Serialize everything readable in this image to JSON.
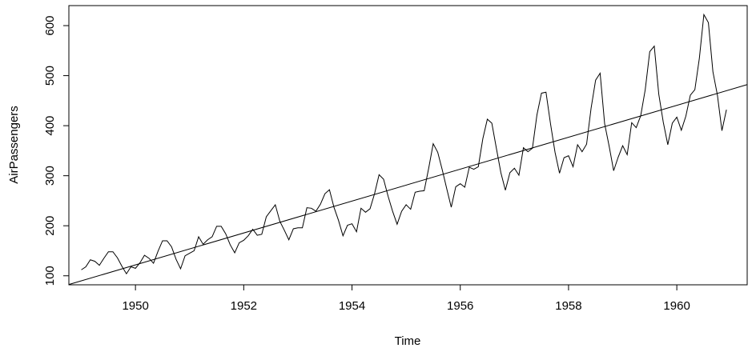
{
  "chart_data": {
    "type": "line",
    "title": "",
    "xlabel": "Time",
    "ylabel": "AirPassengers",
    "xlim": [
      1948.77,
      1961.3
    ],
    "ylim": [
      82,
      640
    ],
    "x_ticks": [
      1950,
      1952,
      1954,
      1956,
      1958,
      1960
    ],
    "y_ticks": [
      100,
      200,
      300,
      400,
      500,
      600
    ],
    "grid": false,
    "legend": "none",
    "line_color": "#000000",
    "series": [
      {
        "start": 1949,
        "frequency": 12,
        "values": [
          112,
          118,
          132,
          129,
          121,
          135,
          148,
          148,
          136,
          119,
          104,
          118,
          115,
          126,
          141,
          135,
          125,
          149,
          170,
          170,
          158,
          133,
          114,
          140,
          145,
          150,
          178,
          163,
          172,
          178,
          199,
          199,
          184,
          162,
          146,
          166,
          171,
          180,
          193,
          181,
          183,
          218,
          230,
          242,
          209,
          191,
          172,
          194,
          196,
          196,
          236,
          235,
          229,
          243,
          264,
          272,
          237,
          211,
          180,
          201,
          204,
          188,
          235,
          227,
          234,
          264,
          302,
          293,
          259,
          229,
          203,
          229,
          242,
          233,
          267,
          269,
          270,
          315,
          364,
          347,
          312,
          274,
          237,
          278,
          284,
          277,
          317,
          313,
          318,
          374,
          413,
          405,
          355,
          306,
          271,
          306,
          315,
          301,
          356,
          348,
          355,
          422,
          465,
          467,
          404,
          347,
          305,
          336,
          340,
          318,
          362,
          348,
          363,
          435,
          491,
          505,
          404,
          359,
          310,
          337,
          360,
          342,
          406,
          396,
          420,
          472,
          548,
          559,
          463,
          407,
          362,
          405,
          417,
          391,
          419,
          461,
          472,
          535,
          622,
          606,
          508,
          461,
          390,
          432
        ]
      },
      {
        "type": "regression-line",
        "intercept": -62055.907,
        "slope": 31.886
      }
    ]
  }
}
